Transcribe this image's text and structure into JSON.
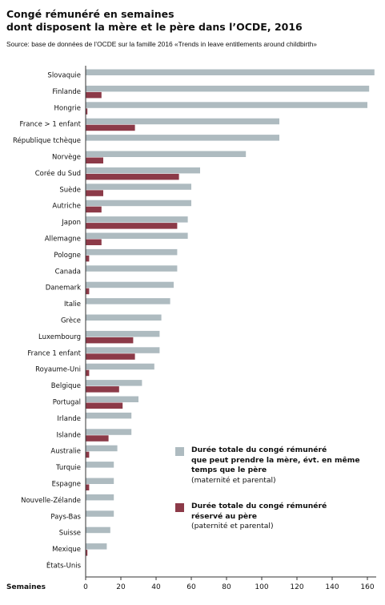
{
  "title_line1": "Congé rémunéré en semaines",
  "title_line2": "dont disposent la mère et le père dans l’OCDE, 2016",
  "source": "Source: base de données de l’OCDE sur la famille 2016 «Trends in leave entitlements around childbirth»",
  "legend": {
    "total_line1": "Durée totale du congé rémunéré",
    "total_line2": "que peut prendre la mère, évt. en même",
    "total_line3": "temps que le père",
    "total_line4": "(maternité et parental)",
    "pere_line1": "Durée totale du congé rémunéré",
    "pere_line2": "réservé au père",
    "pere_line3": "(paternité et parental)"
  },
  "colors": {
    "total": "#aebbc0",
    "pere": "#8c3a48",
    "axis": "#333333"
  },
  "chart_data": {
    "type": "bar",
    "orientation": "horizontal",
    "xlabel": "Semaines",
    "xlim": [
      0,
      165
    ],
    "xticks": [
      0,
      20,
      40,
      60,
      80,
      100,
      120,
      140,
      160
    ],
    "categories": [
      "Slovaquie",
      "Finlande",
      "Hongrie",
      "France > 1 enfant",
      "République tchèque",
      "Norvège",
      "Corée du Sud",
      "Suède",
      "Autriche",
      "Japon",
      "Allemagne",
      "Pologne",
      "Canada",
      "Danemark",
      "Italie",
      "Grèce",
      "Luxembourg",
      "France 1 enfant",
      "Royaume-Uni",
      "Belgique",
      "Portugal",
      "Irlande",
      "Islande",
      "Australie",
      "Turquie",
      "Espagne",
      "Nouvelle-Zélande",
      "Pays-Bas",
      "Suisse",
      "Mexique",
      "États-Unis"
    ],
    "series": [
      {
        "name": "Durée totale du congé rémunéré que peut prendre la mère, évt. en même temps que le père (maternité et parental)",
        "values": [
          164,
          161,
          160,
          110,
          110,
          91,
          65,
          60,
          60,
          58,
          58,
          52,
          52,
          50,
          48,
          43,
          42,
          42,
          39,
          32,
          30,
          26,
          26,
          18,
          16,
          16,
          16,
          16,
          14,
          12,
          0
        ]
      },
      {
        "name": "Durée totale du congé rémunéré réservé au père (paternité et parental)",
        "values": [
          0,
          9,
          1,
          28,
          0,
          10,
          53,
          10,
          9,
          52,
          9,
          2,
          0,
          2,
          0,
          0,
          27,
          28,
          2,
          19,
          21,
          0,
          13,
          2,
          0,
          2,
          0,
          0,
          0,
          1,
          0
        ]
      }
    ]
  }
}
